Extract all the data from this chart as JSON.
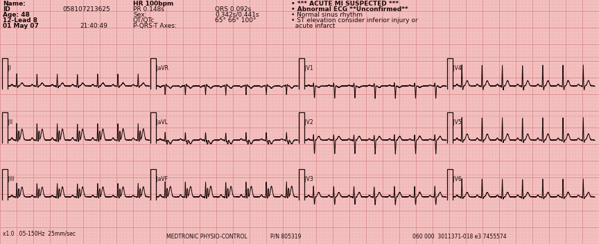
{
  "bg_color": "#f4c0c0",
  "grid_major_color": "#d88888",
  "grid_minor_color": "#ebb0b0",
  "ecg_color": "#1a0808",
  "text_color": "#1a0808",
  "header": {
    "name_label": "Name:",
    "id_label": "ID",
    "id_value": "058107213625",
    "age_label": "Age: 48",
    "lead_label": "12-Lead 8",
    "date_label": "01 May 07",
    "hr_label": "HR 100bpm",
    "pr_label": "PR 0.148s",
    "sex_label": "Sex:",
    "qtqtc_label": "QT/QTc",
    "pqrst_label": "P-QRS-T Axes:",
    "time_label": "21:40:49",
    "qrs_label": "QRS 0.092s",
    "qt_value": "0.342s/0.441s",
    "axes_value": "65° 66° 100°",
    "diag1": "• *** ACUTE MI SUSPECTED ***",
    "diag2": "• Abnormal ECG **Unconfirmed**",
    "diag3": "• Normal sinus rhythm",
    "diag4": "• ST elevation consider inferior injury or",
    "diag5": "  acute infarct"
  },
  "footer": {
    "left": "x1.0  .05-150Hz  25mm/sec",
    "center_left": "MEDTRONIC PHYSIO-CONTROL",
    "center": "P/N 805319",
    "right": "060 000  3011371-018 e3 7455574"
  }
}
